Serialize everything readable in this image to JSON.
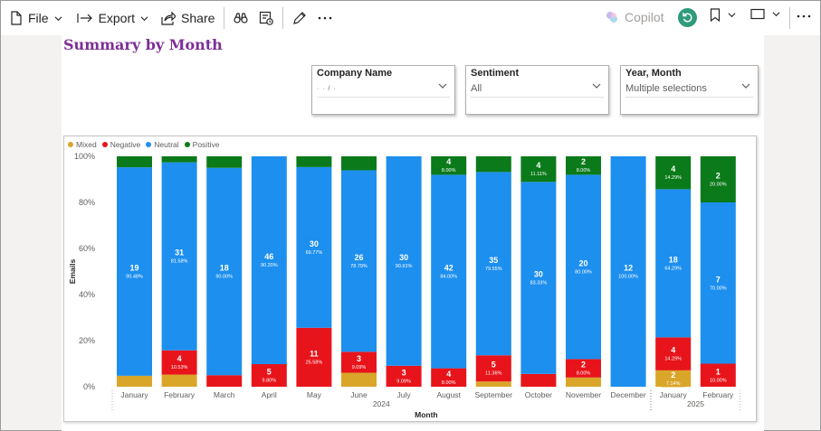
{
  "toolbar": {
    "file_label": "File",
    "export_label": "Export",
    "share_label": "Share",
    "copilot_label": "Copilot"
  },
  "page": {
    "title": "Summary by Month"
  },
  "slicers": [
    {
      "title": "Company Name",
      "value": "· · / ·"
    },
    {
      "title": "Sentiment",
      "value": "All"
    },
    {
      "title": "Year, Month",
      "value": "Multiple selections"
    }
  ],
  "colors": {
    "Mixed": "#d9a62a",
    "Negative": "#e8141b",
    "Neutral": "#1d8fef",
    "Positive": "#0b7a1a",
    "copilot_button": "#2f9b7b",
    "title": "#7d2e96"
  },
  "chart_data": {
    "type": "bar",
    "stacked": "100%",
    "legend": {
      "position": "top-left",
      "entries": [
        "Mixed",
        "Negative",
        "Neutral",
        "Positive"
      ]
    },
    "xlabel": "Month",
    "ylabel": "Emails",
    "ylim": [
      0,
      100
    ],
    "yticks": [
      "0%",
      "20%",
      "40%",
      "60%",
      "80%",
      "100%"
    ],
    "grid": false,
    "categories": [
      "January",
      "February",
      "March",
      "April",
      "May",
      "June",
      "July",
      "August",
      "September",
      "October",
      "November",
      "December",
      "January",
      "February"
    ],
    "year_groups": [
      {
        "label": "2024",
        "start": 0,
        "end": 11
      },
      {
        "label": "2025",
        "start": 12,
        "end": 13
      }
    ],
    "series": [
      {
        "name": "Mixed",
        "percent": [
          4.76,
          5.26,
          0,
          0,
          0,
          6.06,
          0,
          0,
          2.27,
          0,
          4.0,
          0,
          7.14,
          0
        ],
        "counts": [
          null,
          null,
          null,
          null,
          null,
          null,
          null,
          null,
          null,
          null,
          null,
          null,
          2,
          null
        ],
        "pct_labels": [
          null,
          null,
          null,
          null,
          null,
          null,
          null,
          null,
          null,
          null,
          null,
          null,
          "7.14%",
          null
        ]
      },
      {
        "name": "Negative",
        "percent": [
          0,
          10.53,
          5.0,
          9.8,
          25.58,
          9.09,
          9.09,
          8.0,
          11.36,
          5.56,
          8.0,
          0,
          14.29,
          10.0
        ],
        "counts": [
          null,
          4,
          null,
          5,
          11,
          3,
          3,
          4,
          5,
          null,
          2,
          null,
          4,
          1
        ],
        "pct_labels": [
          null,
          "10.53%",
          null,
          "9.80%",
          "25.58%",
          "9.09%",
          "9.09%",
          "8.00%",
          "11.36%",
          null,
          "8.00%",
          null,
          "14.29%",
          "10.00%"
        ]
      },
      {
        "name": "Neutral",
        "percent": [
          90.48,
          81.58,
          90.0,
          90.2,
          69.77,
          78.79,
          90.91,
          84.0,
          79.55,
          83.33,
          80.0,
          100.0,
          64.29,
          70.0
        ],
        "counts": [
          19,
          31,
          18,
          46,
          30,
          26,
          30,
          42,
          35,
          30,
          20,
          12,
          18,
          7
        ],
        "pct_labels": [
          "90.48%",
          "81.58%",
          "90.00%",
          "90.20%",
          "69.77%",
          "78.79%",
          "90.91%",
          "84.00%",
          "79.55%",
          "83.33%",
          "80.00%",
          "100.00%",
          "64.29%",
          "70.00%"
        ]
      },
      {
        "name": "Positive",
        "percent": [
          4.76,
          2.63,
          5.0,
          0,
          4.65,
          6.06,
          0,
          8.0,
          6.82,
          11.11,
          8.0,
          0,
          14.29,
          20.0
        ],
        "counts": [
          null,
          null,
          null,
          null,
          null,
          null,
          null,
          4,
          null,
          4,
          2,
          null,
          4,
          2
        ],
        "pct_labels": [
          null,
          null,
          null,
          null,
          null,
          null,
          null,
          "8.00%",
          null,
          "11.11%",
          "8.00%",
          null,
          "14.29%",
          "20.00%"
        ]
      }
    ]
  }
}
